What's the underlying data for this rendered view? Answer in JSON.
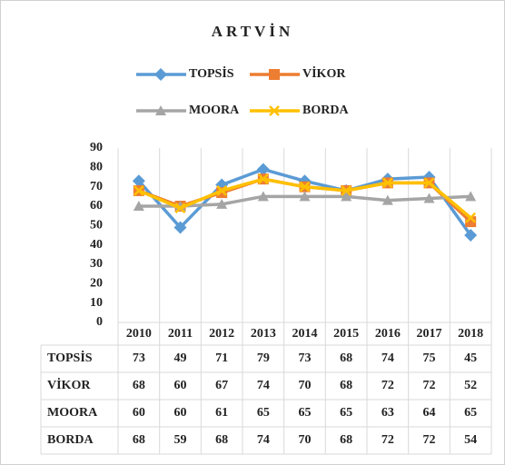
{
  "chart_data": {
    "type": "line",
    "title": "ARTVİN",
    "categories": [
      "2010",
      "2011",
      "2012",
      "2013",
      "2014",
      "2015",
      "2016",
      "2017",
      "2018"
    ],
    "series": [
      {
        "name": "TOPSİS",
        "color": "#5b9bd5",
        "marker": "diamond",
        "values": [
          73,
          49,
          71,
          79,
          73,
          68,
          74,
          75,
          45
        ]
      },
      {
        "name": "VİKOR",
        "color": "#ed7d31",
        "marker": "square",
        "values": [
          68,
          60,
          67,
          74,
          70,
          68,
          72,
          72,
          52
        ]
      },
      {
        "name": "MOORA",
        "color": "#a5a5a5",
        "marker": "triangle",
        "values": [
          60,
          60,
          61,
          65,
          65,
          65,
          63,
          64,
          65
        ]
      },
      {
        "name": "BORDA",
        "color": "#ffc000",
        "marker": "x",
        "values": [
          68,
          59,
          68,
          74,
          70,
          68,
          72,
          72,
          54
        ]
      }
    ],
    "ylim": [
      0,
      90
    ],
    "yticks": [
      0,
      10,
      20,
      30,
      40,
      50,
      60,
      70,
      80,
      90
    ],
    "legend": "top",
    "data_table": true
  }
}
